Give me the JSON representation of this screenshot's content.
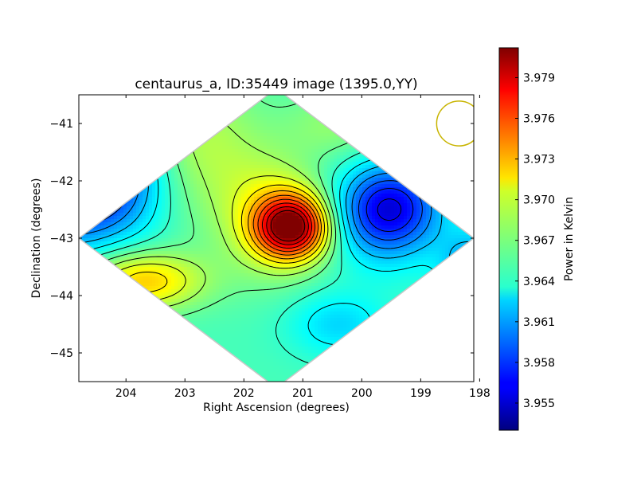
{
  "chart_data": {
    "type": "heatmap",
    "title": "centaurus_a, ID:35449 image (1395.0,YY)",
    "xlabel": "Right Ascension (degrees)",
    "ylabel": "Declination (degrees)",
    "colorbar_label": "Power in Kelvin",
    "x_ticks": [
      "204",
      "203",
      "202",
      "201",
      "200",
      "199",
      "198"
    ],
    "x_tick_values": [
      204,
      203,
      202,
      201,
      200,
      199,
      198
    ],
    "xlim": [
      204.8,
      198.1
    ],
    "y_ticks": [
      "−41",
      "−42",
      "−43",
      "−44",
      "−45"
    ],
    "y_tick_values": [
      -41,
      -42,
      -43,
      -44,
      -45
    ],
    "ylim": [
      -45.5,
      -40.5
    ],
    "colorbar_ticks": [
      "3.955",
      "3.958",
      "3.961",
      "3.964",
      "3.967",
      "3.970",
      "3.973",
      "3.976",
      "3.979"
    ],
    "colorbar_tick_values": [
      3.955,
      3.958,
      3.961,
      3.964,
      3.967,
      3.97,
      3.973,
      3.976,
      3.979
    ],
    "colorbar_range": [
      3.953,
      3.9812
    ],
    "colormap": "jet",
    "contours": true,
    "footprint_outline_color": "#c8c8c8",
    "beam_circle": {
      "ra": 198.35,
      "dec": -41.0,
      "radius_deg": 0.38,
      "color": "#c8b400"
    },
    "field": {
      "background": 3.9655,
      "components": [
        {
          "ra": 204.9,
          "dec": -41.9,
          "sigma_ra": 0.95,
          "sigma_dec": 0.75,
          "amp": -0.0135
        },
        {
          "ra": 201.2,
          "dec": -42.8,
          "sigma_ra": 0.42,
          "sigma_dec": 0.38,
          "amp": 0.0145
        },
        {
          "ra": 201.55,
          "dec": -42.6,
          "sigma_ra": 0.65,
          "sigma_dec": 0.75,
          "amp": 0.004
        },
        {
          "ra": 203.7,
          "dec": -43.75,
          "sigma_ra": 0.7,
          "sigma_dec": 0.35,
          "amp": 0.0065
        },
        {
          "ra": 202.9,
          "dec": -41.4,
          "sigma_ra": 0.8,
          "sigma_dec": 0.9,
          "amp": 0.0035
        },
        {
          "ra": 199.5,
          "dec": -42.4,
          "sigma_ra": 0.6,
          "sigma_dec": 0.5,
          "amp": -0.006
        },
        {
          "ra": 199.6,
          "dec": -42.7,
          "sigma_ra": 0.6,
          "sigma_dec": 0.6,
          "amp": -0.0045
        },
        {
          "ra": 198.1,
          "dec": -43.5,
          "sigma_ra": 0.4,
          "sigma_dec": 0.45,
          "amp": -0.005
        },
        {
          "ra": 200.4,
          "dec": -44.5,
          "sigma_ra": 0.6,
          "sigma_dec": 0.4,
          "amp": -0.003
        },
        {
          "ra": 200.4,
          "dec": -41.0,
          "sigma_ra": 0.6,
          "sigma_dec": 0.4,
          "amp": 0.002
        }
      ]
    }
  }
}
